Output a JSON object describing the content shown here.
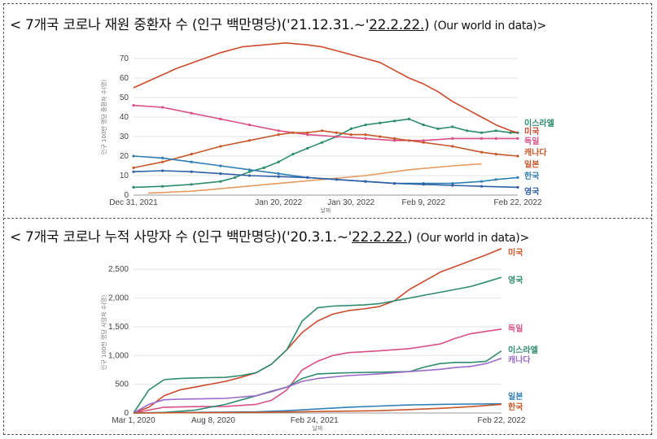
{
  "panels": [
    {
      "title_prefix": "< 7개국 코로나 재원 중환자 수 (인구 백만명당)('21.12.31.~'",
      "title_date": "22.2.22.",
      "title_suffix": ") ",
      "title_source": "(Our world in data)>"
    },
    {
      "title_prefix": "< 7개국 코로나 누적 사망자 수 (인구 백만명당)('20.3.1.~'",
      "title_date": "22.2.22.",
      "title_suffix": ") ",
      "title_source": "(Our world in data)>"
    }
  ],
  "colors": {
    "israel": "#2e8b6e",
    "usa": "#cc4a2d",
    "germany": "#d94f86",
    "canada": "#9b6bc9",
    "canada_top": "#c8572a",
    "japan": "#e59a5f",
    "korea": "#2f7fb5",
    "uk": "#2f5fa5"
  },
  "chart_data": [
    {
      "type": "line",
      "title": "7개국 코로나 재원 중환자 수 (인구 백만명당)",
      "xlabel": "날짜",
      "ylabel": "인구 100만 명당 중환자 수(명)",
      "ylim": [
        0,
        80
      ],
      "yticks": [
        0,
        10,
        20,
        30,
        40,
        50,
        60,
        70
      ],
      "xlim": [
        0,
        53
      ],
      "xticks": [
        {
          "pos": 0,
          "label": "Dec 31, 2021"
        },
        {
          "pos": 20,
          "label": "Jan 20, 2022"
        },
        {
          "pos": 30,
          "label": "Jan 30, 2022"
        },
        {
          "pos": 40,
          "label": "Feb 9, 2022"
        },
        {
          "pos": 53,
          "label": "Feb 22, 2022"
        }
      ],
      "grid": true,
      "series": [
        {
          "name": "이스라엘",
          "color_key": "israel",
          "markers": true,
          "x": [
            0,
            4,
            8,
            12,
            14,
            16,
            18,
            20,
            22,
            24,
            26,
            28,
            30,
            32,
            34,
            36,
            38,
            40,
            42,
            44,
            46,
            48,
            50,
            52,
            53
          ],
          "y": [
            4,
            4.5,
            5.5,
            7,
            9,
            12,
            14,
            17,
            21,
            24,
            27,
            30,
            34,
            36,
            37,
            38,
            39,
            36,
            34,
            35,
            33,
            32,
            33,
            32,
            32
          ]
        },
        {
          "name": "미국",
          "color_key": "usa",
          "markers": false,
          "x": [
            0,
            3,
            6,
            9,
            12,
            15,
            18,
            21,
            24,
            26,
            28,
            30,
            32,
            34,
            36,
            38,
            40,
            42,
            44,
            46,
            48,
            50,
            52,
            53
          ],
          "y": [
            55,
            60,
            65,
            69,
            73,
            76,
            77,
            78,
            77,
            76,
            74,
            72,
            70,
            68,
            64,
            60,
            57,
            53,
            48,
            44,
            40,
            36,
            33,
            32
          ]
        },
        {
          "name": "독일",
          "color_key": "germany",
          "markers": true,
          "x": [
            0,
            4,
            8,
            12,
            16,
            20,
            24,
            28,
            32,
            36,
            40,
            44,
            48,
            50,
            53
          ],
          "y": [
            46,
            45,
            42,
            39,
            36,
            33,
            31,
            30,
            29,
            28,
            28,
            29,
            29,
            29,
            29
          ]
        },
        {
          "name": "캐나다",
          "color_key": "canada_top",
          "markers": true,
          "x": [
            0,
            4,
            8,
            12,
            16,
            20,
            22,
            24,
            26,
            28,
            30,
            32,
            34,
            36,
            38,
            40,
            44,
            48,
            50,
            53
          ],
          "y": [
            14,
            17,
            21,
            25,
            28,
            31,
            32,
            32,
            33,
            32,
            31,
            31,
            30,
            29,
            28,
            27,
            25,
            22,
            21,
            20
          ]
        },
        {
          "name": "일본",
          "color_key": "japan",
          "markers": false,
          "x": [
            2,
            8,
            14,
            20,
            26,
            32,
            38,
            44,
            48
          ],
          "y": [
            1,
            2,
            4,
            6,
            8,
            10,
            13,
            15,
            16
          ]
        },
        {
          "name": "한국",
          "color_key": "korea",
          "markers": true,
          "x": [
            0,
            4,
            8,
            12,
            16,
            20,
            24,
            28,
            32,
            36,
            40,
            44,
            48,
            50,
            53
          ],
          "y": [
            20,
            19,
            17,
            15,
            13,
            11,
            9,
            8,
            7,
            6,
            6,
            6,
            7,
            8,
            9
          ]
        },
        {
          "name": "영국",
          "color_key": "uk",
          "markers": true,
          "x": [
            0,
            4,
            8,
            12,
            16,
            20,
            24,
            28,
            32,
            36,
            40,
            44,
            48,
            53
          ],
          "y": [
            12,
            12.5,
            12,
            11,
            10,
            9.5,
            9,
            8,
            7,
            6,
            5.5,
            5,
            4.5,
            4
          ]
        }
      ],
      "labels": [
        {
          "text": "이스라엘",
          "color_key": "israel",
          "y": 37
        },
        {
          "text": "미국",
          "color_key": "usa",
          "y": 33
        },
        {
          "text": "독일",
          "color_key": "germany",
          "y": 28
        },
        {
          "text": "캐나다",
          "color_key": "canada_top",
          "y": 22
        },
        {
          "text": "일본",
          "color_key": "canada_top",
          "y": 16
        },
        {
          "text": "한국",
          "color_key": "korea",
          "y": 10
        },
        {
          "text": "영국",
          "color_key": "uk",
          "y": 2
        }
      ]
    },
    {
      "type": "line",
      "title": "7개국 코로나 누적 사망자 수 (인구 백만명당)",
      "xlabel": "날짜",
      "ylabel": "인구 100만 명당 사망자 수(명)",
      "ylim": [
        0,
        2800
      ],
      "yticks": [
        0,
        500,
        1000,
        1500,
        2000,
        2500
      ],
      "xlim": [
        0,
        24
      ],
      "xticks": [
        {
          "pos": 0,
          "label": "Mar 1, 2020"
        },
        {
          "pos": 5.2,
          "label": "Aug 8, 2020"
        },
        {
          "pos": 11.8,
          "label": "Feb 24, 2021"
        },
        {
          "pos": 24,
          "label": "Feb 22, 2022"
        }
      ],
      "grid": true,
      "series": [
        {
          "name": "미국",
          "color_key": "usa",
          "x": [
            0,
            1,
            2,
            3,
            4,
            5,
            6,
            7,
            8,
            9,
            10,
            11,
            12,
            13,
            14,
            15,
            16,
            17,
            18,
            19,
            20,
            21,
            22,
            23,
            24
          ],
          "y": [
            0,
            100,
            300,
            400,
            450,
            500,
            550,
            620,
            700,
            850,
            1100,
            1400,
            1600,
            1720,
            1780,
            1810,
            1850,
            1950,
            2150,
            2300,
            2450,
            2550,
            2650,
            2750,
            2860
          ]
        },
        {
          "name": "영국",
          "color_key": "israel",
          "x": [
            0,
            1,
            2,
            3,
            4,
            5,
            6,
            7,
            8,
            9,
            10,
            11,
            12,
            13,
            14,
            15,
            16,
            17,
            18,
            19,
            20,
            21,
            22,
            23,
            24
          ],
          "y": [
            0,
            400,
            580,
            600,
            610,
            615,
            620,
            650,
            700,
            850,
            1100,
            1600,
            1830,
            1860,
            1870,
            1880,
            1900,
            1950,
            2000,
            2050,
            2100,
            2150,
            2200,
            2280,
            2360
          ]
        },
        {
          "name": "독일",
          "color_key": "germany",
          "x": [
            0,
            2,
            4,
            6,
            8,
            9,
            10,
            11,
            12,
            13,
            14,
            16,
            17,
            18,
            20,
            21,
            22,
            23,
            24
          ],
          "y": [
            0,
            100,
            110,
            115,
            150,
            220,
            400,
            750,
            900,
            1000,
            1050,
            1080,
            1100,
            1120,
            1200,
            1300,
            1380,
            1420,
            1460
          ]
        },
        {
          "name": "이스라엘",
          "color_key": "israel",
          "x": [
            0,
            2,
            4,
            6,
            8,
            9,
            10,
            11,
            12,
            13,
            14,
            16,
            18,
            19,
            20,
            21,
            22,
            23,
            24
          ],
          "y": [
            0,
            10,
            50,
            150,
            300,
            380,
            450,
            600,
            680,
            690,
            700,
            710,
            720,
            800,
            860,
            880,
            880,
            900,
            1080
          ]
        },
        {
          "name": "캐나다",
          "color_key": "canada",
          "x": [
            0,
            1,
            2,
            3,
            4,
            6,
            8,
            9,
            10,
            11,
            12,
            14,
            16,
            18,
            20,
            21,
            22,
            23,
            24
          ],
          "y": [
            0,
            150,
            230,
            240,
            245,
            255,
            300,
            370,
            450,
            550,
            600,
            650,
            680,
            720,
            760,
            790,
            810,
            860,
            950
          ]
        },
        {
          "name": "일본",
          "color_key": "korea",
          "x": [
            0,
            4,
            8,
            10,
            12,
            14,
            16,
            18,
            20,
            22,
            24
          ],
          "y": [
            0,
            10,
            20,
            40,
            70,
            100,
            120,
            140,
            150,
            155,
            160
          ]
        },
        {
          "name": "한국",
          "color_key": "canada_top",
          "x": [
            0,
            4,
            8,
            12,
            16,
            18,
            20,
            22,
            24
          ],
          "y": [
            0,
            5,
            10,
            25,
            40,
            60,
            80,
            110,
            150
          ]
        }
      ],
      "labels": [
        {
          "text": "미국",
          "color_key": "canada_top",
          "y": 2800
        },
        {
          "text": "영국",
          "color_key": "israel",
          "y": 2320
        },
        {
          "text": "독일",
          "color_key": "germany",
          "y": 1480
        },
        {
          "text": "이스라엘",
          "color_key": "israel",
          "y": 1100
        },
        {
          "text": "캐나다",
          "color_key": "canada",
          "y": 930
        },
        {
          "text": "일본",
          "color_key": "korea",
          "y": 300
        },
        {
          "text": "한국",
          "color_key": "canada_top",
          "y": 110
        }
      ]
    }
  ]
}
